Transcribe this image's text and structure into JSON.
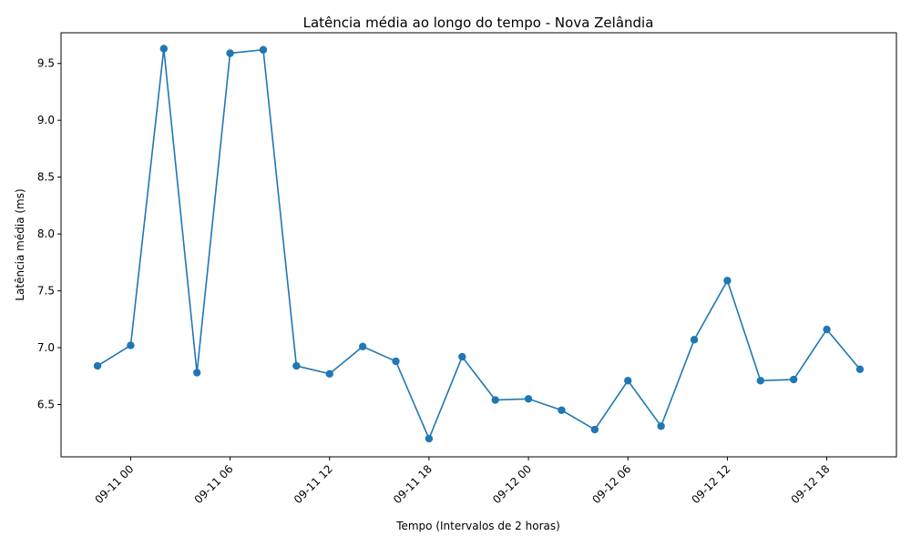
{
  "chart_data": {
    "type": "line",
    "title": "Latência média ao longo do tempo - Nova Zelândia",
    "xlabel": "Tempo (Intervalos de 2 horas)",
    "ylabel": "Latência média (ms)",
    "x_ticks": [
      "09-11 00",
      "09-11 06",
      "09-11 12",
      "09-11 18",
      "09-12 00",
      "09-12 06",
      "09-12 12",
      "09-12 18"
    ],
    "y_ticks": [
      "6.5",
      "7.0",
      "7.5",
      "8.0",
      "8.5",
      "9.0",
      "9.5"
    ],
    "x_tick_hours": [
      0,
      6,
      12,
      18,
      24,
      30,
      36,
      42
    ],
    "y_tick_values": [
      6.5,
      7.0,
      7.5,
      8.0,
      8.5,
      9.0,
      9.5
    ],
    "xlim_hours": [
      -4.2,
      46.2
    ],
    "ylim": [
      6.04,
      9.77
    ],
    "color": "#1f77b4",
    "grid": false,
    "series": [
      {
        "x_hours": [
          -2,
          0,
          2,
          4,
          6,
          8,
          10,
          12,
          14,
          16,
          18,
          20,
          22,
          24,
          26,
          28,
          30,
          32,
          34,
          36,
          38,
          40,
          42,
          44
        ],
        "values": [
          6.84,
          7.02,
          9.63,
          6.78,
          9.59,
          9.62,
          6.84,
          6.77,
          7.01,
          6.88,
          6.2,
          6.92,
          6.54,
          6.55,
          6.45,
          6.28,
          6.71,
          6.31,
          7.07,
          7.59,
          6.71,
          6.72,
          7.16,
          6.81
        ]
      }
    ]
  }
}
